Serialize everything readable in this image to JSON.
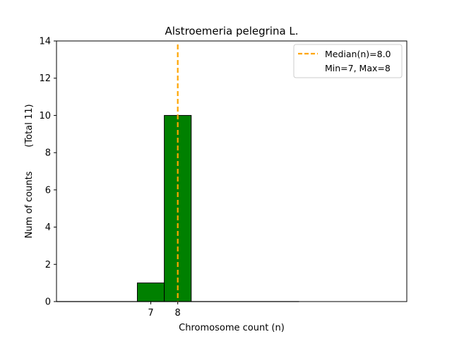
{
  "chart_data": {
    "type": "bar",
    "title": "Alstroemeria pelegrina L.",
    "xlabel": "Chromosome count (n)",
    "ylabel": "Num of counts",
    "ylabel_total": "(Total 11)",
    "xlim": [
      3.5,
      16.5
    ],
    "ylim": [
      0,
      14
    ],
    "yticks": [
      0,
      2,
      4,
      6,
      8,
      10,
      12,
      14
    ],
    "xticks": [
      7,
      8
    ],
    "bars": [
      {
        "x": 7,
        "value": 1
      },
      {
        "x": 8,
        "value": 10
      }
    ],
    "bar_color": "#008000",
    "bar_edge_color": "#000000",
    "baseline_span": [
      3.5,
      12.5
    ],
    "median": 8.0,
    "median_color": "#FFA500",
    "legend": {
      "placement": "top-right",
      "entries": [
        "Median(n)=8.0",
        "Min=7, Max=8"
      ]
    }
  }
}
